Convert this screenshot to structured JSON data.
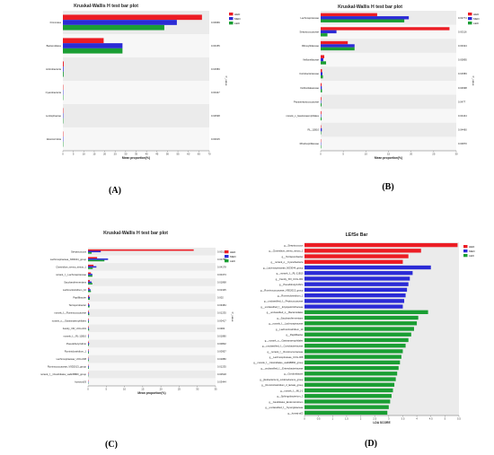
{
  "colors": {
    "HED": "#ec1c24",
    "MED": "#2b2bd6",
    "LED": "#1a9e33",
    "panel_bg": "#ebebeb",
    "row_alt": "#f7f7f7"
  },
  "panel_labels": [
    "(A)",
    "(B)",
    "(C)",
    "(D)"
  ],
  "chart_data": [
    {
      "type": "bar",
      "title": "Kruskal-Wallis H test bar plot",
      "xlabel": "Mean proportion(%)",
      "pvalue_label": "P_value",
      "xlim": [
        0,
        70
      ],
      "xticks": [
        0,
        5,
        10,
        15,
        20,
        25,
        30,
        35,
        40,
        45,
        50,
        55,
        60,
        65,
        70
      ],
      "legend": [
        "HED",
        "MED",
        "LED"
      ],
      "legend_position": "top-right",
      "categories": [
        "Firmicutes",
        "Bacteroidetes",
        "Actinobacteria",
        "Cyanobacteria",
        "Lentisphaerae",
        "Elusimicrobia"
      ],
      "series": [
        {
          "name": "HED",
          "values": [
            66.5,
            19.5,
            0.4,
            0.1,
            0.1,
            0.05
          ]
        },
        {
          "name": "MED",
          "values": [
            54.5,
            28.5,
            0.3,
            0.1,
            0.05,
            0.05
          ]
        },
        {
          "name": "LED",
          "values": [
            48.5,
            28.5,
            0.35,
            0.15,
            0.05,
            0.05
          ]
        }
      ],
      "pvalues": [
        "0.00969",
        "0.00155",
        "0.01583",
        "0.00447",
        "0.02538",
        "0.00015"
      ]
    },
    {
      "type": "bar",
      "title": "Kruskal-Wallis H test bar plot",
      "xlabel": "Mean proportion(%)",
      "pvalue_label": "P_value",
      "xlim": [
        0,
        30
      ],
      "xticks": [
        0,
        5,
        10,
        15,
        20,
        25,
        30
      ],
      "legend": [
        "HED",
        "MED",
        "LED"
      ],
      "legend_position": "top-right",
      "categories": [
        "Lachnospiraceae",
        "Streptococcaceae",
        "Ribosyltidaceae",
        "Veillonellaceae",
        "Coriobacteriaceae",
        "Defluviitaleaceae",
        "Peptostreptococcaceae",
        "norank_c_Gastranaerophilales",
        "RL_11B10",
        "Rhodospirillaceae"
      ],
      "series": [
        {
          "name": "HED",
          "values": [
            12.5,
            28.5,
            6.0,
            0.8,
            0.3,
            0.2,
            0.15,
            0.15,
            0.1,
            0.05
          ]
        },
        {
          "name": "MED",
          "values": [
            19.5,
            3.5,
            7.5,
            0.6,
            0.4,
            0.25,
            0.1,
            0.1,
            0.25,
            0.05
          ]
        },
        {
          "name": "LED",
          "values": [
            18.5,
            1.5,
            7.5,
            1.2,
            0.5,
            0.3,
            0.2,
            0.2,
            0.1,
            0.1
          ]
        }
      ],
      "pvalues": [
        "0.02774",
        "0.00116",
        "0.03324",
        "0.00895",
        "0.01583",
        "0.04698",
        "0.0477",
        "0.04444",
        "0.04460",
        "0.04870"
      ]
    },
    {
      "type": "bar",
      "title": "Kruskal-Wallis H test bar plot",
      "xlabel": "Mean proportion(%)",
      "pvalue_label": "P_value",
      "xlim": [
        0,
        35
      ],
      "xticks": [
        0,
        5,
        10,
        15,
        20,
        25,
        30,
        35
      ],
      "legend": [
        "HED",
        "MED",
        "LED"
      ],
      "legend_position": "top-right",
      "categories": [
        "Streptococcus",
        "Lachnospiraceae_ND3044_group",
        "Clostridium_sensu_stricto_1",
        "norank_f__Lachnospiraceae",
        "Saccharofermentans",
        "Lachnoclostridium_10",
        "Papillibacter",
        "Terrisporobacter",
        "norank_f__Ruminococcaceae",
        "norank_o__Gastranaerophilales",
        "Family_XIII_UCG-001",
        "norank_f__RL-11B10",
        "Pseudobutyrivibrio",
        "Ruminiclostridium_1",
        "Lachnospiraceae_UCG-008",
        "Ruminococcaceae_V9D2013_group",
        "norank_f__Clostridiales_vadinBB60_group",
        "horsej-a03"
      ],
      "series": [
        {
          "name": "HED",
          "values": [
            29.0,
            2.5,
            1.5,
            0.8,
            0.5,
            0.4,
            0.3,
            0.2,
            0.2,
            0.15,
            0.15,
            0.1,
            0.2,
            0.15,
            0.1,
            0.1,
            0.05,
            0.05
          ]
        },
        {
          "name": "MED",
          "values": [
            3.5,
            5.5,
            2.3,
            1.2,
            1.0,
            0.7,
            0.5,
            0.4,
            0.3,
            0.2,
            0.2,
            0.2,
            0.3,
            0.2,
            0.15,
            0.2,
            0.1,
            0.05
          ]
        },
        {
          "name": "LED",
          "values": [
            1.0,
            4.5,
            1.3,
            1.2,
            1.2,
            0.8,
            0.5,
            0.4,
            0.35,
            0.25,
            0.3,
            0.15,
            0.25,
            0.25,
            0.2,
            0.2,
            0.1,
            0.1
          ]
        }
      ],
      "pvalues": [
        "0.00116",
        "0.00788",
        "0.04178",
        "0.00473",
        "0.01868",
        "0.01325",
        "0.002",
        "0.03384",
        "0.01235",
        "0.00417",
        "0.0384",
        "0.01880",
        "0.00802",
        "0.00957",
        "0.01880",
        "0.01235",
        "0.00518",
        "0.03444"
      ]
    },
    {
      "type": "bar",
      "title": "LEfSe Bar",
      "xlabel": "LDA SCORE",
      "xlim": [
        0,
        5.5
      ],
      "xticks": [
        0,
        0.5,
        1,
        1.5,
        2,
        2.5,
        3,
        3.5,
        4,
        4.5,
        5,
        5.5
      ],
      "xtick_labels": [
        "0",
        "0.5",
        "1",
        "1.5",
        "2",
        "2.5",
        "3",
        "3.5",
        "4",
        "4.5",
        "5",
        "5.5"
      ],
      "legend": [
        "HED",
        "MED",
        "LED"
      ],
      "legend_position": "top-right",
      "bars": [
        {
          "label": "g__Streptococcus",
          "group": "HED",
          "value": 5.45
        },
        {
          "label": "g__Clostridium_sensu_stricto_1",
          "group": "HED",
          "value": 4.15
        },
        {
          "label": "g__Terrisporobacter",
          "group": "HED",
          "value": 3.7
        },
        {
          "label": "g__norank_o__Cyanobacteria",
          "group": "HED",
          "value": 3.5
        },
        {
          "label": "g__Lachnospiraceae_ND3044_group",
          "group": "MED",
          "value": 4.5
        },
        {
          "label": "g__norank_f__RL-11B10",
          "group": "MED",
          "value": 3.85
        },
        {
          "label": "g__Family_XIII_UCG-001",
          "group": "MED",
          "value": 3.75
        },
        {
          "label": "g__Pseudobutyrivibrio",
          "group": "MED",
          "value": 3.7
        },
        {
          "label": "g__Ruminococcaceae_V9D2013_group",
          "group": "MED",
          "value": 3.65
        },
        {
          "label": "g__Ruminiclostridium_1",
          "group": "MED",
          "value": 3.6
        },
        {
          "label": "g__unclassified_f__Peptococcaceae",
          "group": "MED",
          "value": 3.55
        },
        {
          "label": "g__unclassified_f__Erysipelotrichaceae",
          "group": "MED",
          "value": 3.5
        },
        {
          "label": "g__unclassified_o__Bacteroidales",
          "group": "LED",
          "value": 4.4
        },
        {
          "label": "g__Saccharofermentans",
          "group": "LED",
          "value": 4.05
        },
        {
          "label": "g__norank_f__Lachnospiraceae",
          "group": "LED",
          "value": 4.0
        },
        {
          "label": "g__Lachnoclostridium_10",
          "group": "LED",
          "value": 3.9
        },
        {
          "label": "g__Papillibacter",
          "group": "LED",
          "value": 3.8
        },
        {
          "label": "g__norank_o__Gastranaerophilales",
          "group": "LED",
          "value": 3.7
        },
        {
          "label": "g__unclassified_f__Coriobacteriaceae",
          "group": "LED",
          "value": 3.6
        },
        {
          "label": "g__norank_f__Ruminococcaceae",
          "group": "LED",
          "value": 3.5
        },
        {
          "label": "g__Lachnospiraceae_UCG-008",
          "group": "LED",
          "value": 3.45
        },
        {
          "label": "g__norank_f__Clostridiales_vadinBB60_group",
          "group": "LED",
          "value": 3.4
        },
        {
          "label": "g__unclassified_f__Enterobacteriaceae",
          "group": "LED",
          "value": 3.35
        },
        {
          "label": "g__Gordonibacter",
          "group": "LED",
          "value": 3.3
        },
        {
          "label": "g__[Eubacterium]_oxidoreducens_group",
          "group": "LED",
          "value": 3.25
        },
        {
          "label": "g__Ruminiclostridium_2_lactate_group",
          "group": "LED",
          "value": 3.2
        },
        {
          "label": "g__norank_f__ML1-1",
          "group": "LED",
          "value": 3.15
        },
        {
          "label": "g__Sphingobacterium_3",
          "group": "LED",
          "value": 3.1
        },
        {
          "label": "g__Candidatus_Endomicrobium",
          "group": "LED",
          "value": 3.05
        },
        {
          "label": "g__unclassified_f__Synergistaceae",
          "group": "LED",
          "value": 3.0
        },
        {
          "label": "g__horsej-a03",
          "group": "LED",
          "value": 2.95
        }
      ]
    }
  ]
}
